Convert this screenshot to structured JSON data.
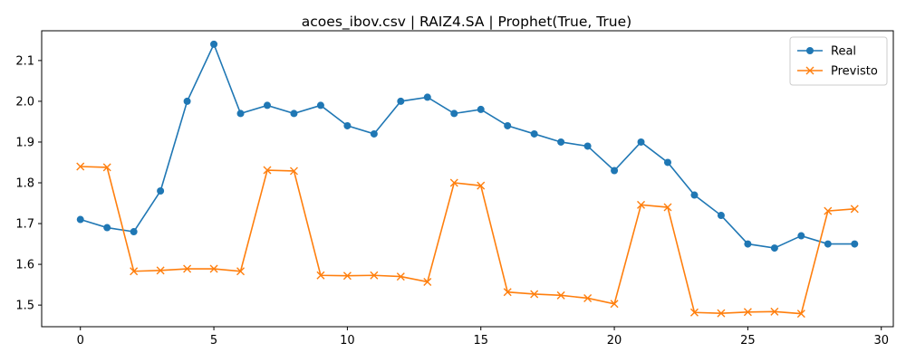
{
  "chart_data": {
    "type": "line",
    "title": "acoes_ibov.csv | RAIZ4.SA | Prophet(True, True)",
    "xlabel": "",
    "ylabel": "",
    "xlim": [
      -1.45,
      30.45
    ],
    "ylim": [
      1.447,
      2.173
    ],
    "x_ticks": [
      0,
      5,
      10,
      15,
      20,
      25,
      30
    ],
    "y_ticks": [
      1.5,
      1.6,
      1.7,
      1.8,
      1.9,
      2.0,
      2.1
    ],
    "grid": false,
    "legend_position": "top-right",
    "x": [
      0,
      1,
      2,
      3,
      4,
      5,
      6,
      7,
      8,
      9,
      10,
      11,
      12,
      13,
      14,
      15,
      16,
      17,
      18,
      19,
      20,
      21,
      22,
      23,
      24,
      25,
      26,
      27,
      28,
      29
    ],
    "series": [
      {
        "name": "Real",
        "color": "#1f77b4",
        "marker": "circle",
        "values": [
          1.71,
          1.69,
          1.68,
          1.78,
          2.0,
          2.14,
          1.97,
          1.99,
          1.97,
          1.99,
          1.94,
          1.92,
          2.0,
          2.01,
          1.97,
          1.98,
          1.94,
          1.92,
          1.9,
          1.89,
          1.83,
          1.9,
          1.85,
          1.77,
          1.72,
          1.65,
          1.64,
          1.67,
          1.65,
          1.65
        ]
      },
      {
        "name": "Previsto",
        "color": "#ff7f0e",
        "marker": "x",
        "values": [
          1.84,
          1.838,
          1.583,
          1.585,
          1.589,
          1.589,
          1.583,
          1.831,
          1.829,
          1.573,
          1.572,
          1.573,
          1.57,
          1.557,
          1.8,
          1.793,
          1.532,
          1.527,
          1.524,
          1.517,
          1.503,
          1.746,
          1.74,
          1.482,
          1.48,
          1.483,
          1.484,
          1.479,
          1.731,
          1.736
        ]
      }
    ]
  }
}
